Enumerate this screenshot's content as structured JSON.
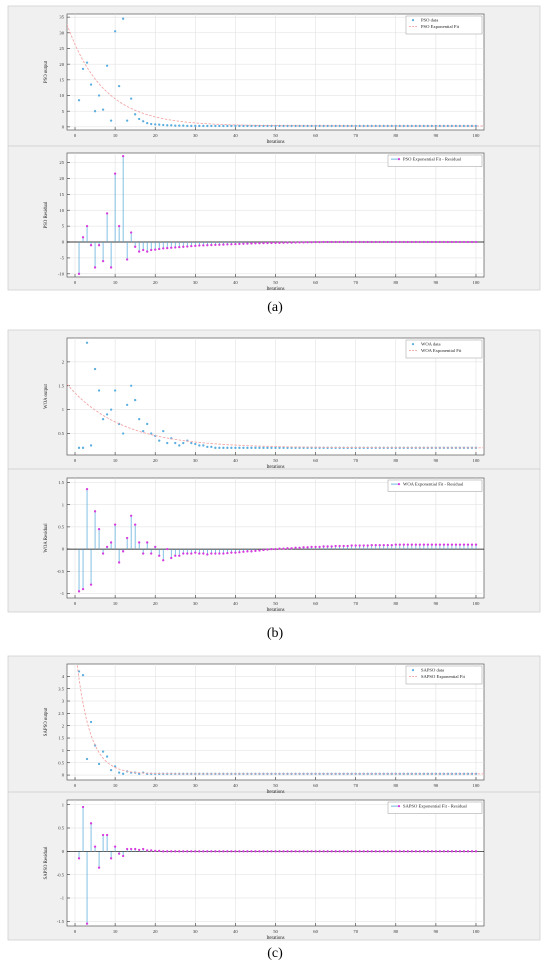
{
  "figure": {
    "captions": [
      "(a)",
      "(b)",
      "(c)"
    ],
    "colors": {
      "panel_bg": "#f0f0f0",
      "plot_bg": "#ffffff",
      "data_marker": "#5aaee0",
      "fit_line": "#f4a6a6",
      "stem_line": "#4da6d9",
      "stem_marker": "#d63be0",
      "zero_line": "#000000",
      "grid": "#dddddd"
    },
    "fit_line_style": "dashed"
  },
  "chart_data": [
    {
      "type": "scatter",
      "group": "(a)",
      "ylabel": "PSO output",
      "xlabel": "Iterations",
      "xlim": [
        -2,
        102
      ],
      "ylim": [
        -1,
        36
      ],
      "xticks": [
        0,
        10,
        20,
        30,
        40,
        50,
        60,
        70,
        80,
        90,
        100
      ],
      "xtick_labels": [
        "0",
        "10",
        "20",
        "30",
        "40",
        "50",
        "60",
        "70",
        "80",
        "90",
        "100"
      ],
      "yticks": [
        0,
        5,
        10,
        15,
        20,
        25,
        30,
        35
      ],
      "ytick_labels": [
        "0",
        "5",
        "10",
        "15",
        "20",
        "25",
        "30",
        "35"
      ],
      "legend": [
        "PSO data",
        "PSO Exponential Fit"
      ],
      "legend_position": "top-right",
      "series": [
        {
          "name": "PSO data",
          "kind": "points",
          "y": [
            8.5,
            18.5,
            20.5,
            13.5,
            5,
            10,
            5.5,
            19.5,
            2,
            30.5,
            13,
            34.5,
            2,
            9,
            4,
            2.5,
            1.8,
            1.2,
            0.9,
            0.8,
            0.7,
            0.6,
            0.5,
            0.5,
            0.4,
            0.4,
            0.4,
            0.3,
            0.3,
            0.3,
            0.3,
            0.3,
            0.3,
            0.3,
            0.3,
            0.3,
            0.3,
            0.3,
            0.3,
            0.3,
            0.3,
            0.3,
            0.3,
            0.3,
            0.3,
            0.3,
            0.3,
            0.3,
            0.3,
            0.3,
            0.3,
            0.3,
            0.3,
            0.3,
            0.3,
            0.3,
            0.3,
            0.3,
            0.3,
            0.3,
            0.3,
            0.3,
            0.3,
            0.3,
            0.3,
            0.3,
            0.3,
            0.3,
            0.3,
            0.3,
            0.3,
            0.3,
            0.3,
            0.3,
            0.3,
            0.3,
            0.3,
            0.3,
            0.3,
            0.3,
            0.3,
            0.3,
            0.3,
            0.3,
            0.3,
            0.3,
            0.3,
            0.3,
            0.3,
            0.3,
            0.3,
            0.3,
            0.3,
            0.3,
            0.3,
            0.3,
            0.3,
            0.3,
            0.3,
            0.3
          ]
        },
        {
          "name": "PSO Exponential Fit",
          "kind": "exp",
          "a": 26,
          "b": 0.11,
          "c": 0.3,
          "x_start": -2,
          "x_end": 102
        }
      ]
    },
    {
      "type": "stem",
      "group": "(a)",
      "ylabel": "PSO Residual",
      "xlabel": "Iterations",
      "xlim": [
        -2,
        102
      ],
      "ylim": [
        -11,
        28
      ],
      "xticks": [
        0,
        10,
        20,
        30,
        40,
        50,
        60,
        70,
        80,
        90,
        100
      ],
      "xtick_labels": [
        "0",
        "10",
        "20",
        "30",
        "40",
        "50",
        "60",
        "70",
        "80",
        "90",
        "100"
      ],
      "yticks": [
        -10,
        -5,
        0,
        5,
        10,
        15,
        20,
        25
      ],
      "ytick_labels": [
        "-10",
        "-5",
        "0",
        "5",
        "10",
        "15",
        "20",
        "25"
      ],
      "legend": [
        "PSO Exponential Fit - Residual"
      ],
      "legend_position": "top-right",
      "series": [
        {
          "name": "PSO Exponential Fit - Residual",
          "kind": "stem",
          "y": [
            -10,
            1.5,
            5,
            -1,
            -8,
            -1,
            -6,
            9,
            -8,
            21.5,
            5,
            27,
            -5.5,
            3,
            -1.5,
            -3,
            -2.5,
            -3,
            -2.5,
            -2.4,
            -2.2,
            -2,
            -1.9,
            -1.8,
            -1.7,
            -1.6,
            -1.5,
            -1.4,
            -1.3,
            -1.2,
            -1.1,
            -1.05,
            -1,
            -0.95,
            -0.9,
            -0.85,
            -0.8,
            -0.75,
            -0.7,
            -0.65,
            -0.6,
            -0.55,
            -0.5,
            -0.45,
            -0.4,
            -0.38,
            -0.35,
            -0.32,
            -0.3,
            -0.28,
            -0.25,
            -0.22,
            -0.2,
            -0.18,
            -0.15,
            -0.12,
            -0.1,
            -0.08,
            -0.06,
            -0.04,
            -0.02,
            0,
            0,
            0,
            0,
            0,
            0,
            0,
            0,
            0,
            0,
            0,
            0,
            0,
            0,
            0,
            0,
            0,
            0,
            0,
            0,
            0,
            0,
            0,
            0,
            0,
            0,
            0,
            0,
            0,
            0,
            0,
            0,
            0,
            0,
            0,
            0,
            0,
            0,
            0
          ]
        }
      ]
    },
    {
      "type": "scatter",
      "group": "(b)",
      "ylabel": "WOA output",
      "xlabel": "Iterations",
      "xlim": [
        -2,
        102
      ],
      "ylim": [
        0.05,
        2.5
      ],
      "xticks": [
        0,
        10,
        20,
        30,
        40,
        50,
        60,
        70,
        80,
        90,
        100
      ],
      "xtick_labels": [
        "0",
        "10",
        "20",
        "30",
        "40",
        "50",
        "60",
        "70",
        "80",
        "90",
        "100"
      ],
      "yticks": [
        0.5,
        1,
        1.5,
        2
      ],
      "ytick_labels": [
        "0.5",
        "1",
        "1.5",
        "2"
      ],
      "legend": [
        "WOA data",
        "WOA Exponential Fit"
      ],
      "legend_position": "top-right",
      "series": [
        {
          "name": "WOA data",
          "kind": "points",
          "y": [
            0.2,
            0.2,
            2.4,
            0.25,
            1.85,
            1.4,
            0.8,
            0.9,
            1,
            1.4,
            0.7,
            0.5,
            1.1,
            1.5,
            1.2,
            0.8,
            0.55,
            0.7,
            0.5,
            0.45,
            0.35,
            0.55,
            0.3,
            0.4,
            0.3,
            0.25,
            0.3,
            0.35,
            0.3,
            0.28,
            0.25,
            0.25,
            0.22,
            0.22,
            0.2,
            0.2,
            0.2,
            0.2,
            0.2,
            0.2,
            0.2,
            0.2,
            0.2,
            0.2,
            0.2,
            0.2,
            0.2,
            0.2,
            0.2,
            0.2,
            0.2,
            0.2,
            0.2,
            0.2,
            0.2,
            0.2,
            0.2,
            0.2,
            0.2,
            0.2,
            0.2,
            0.2,
            0.2,
            0.2,
            0.2,
            0.2,
            0.2,
            0.2,
            0.2,
            0.2,
            0.2,
            0.2,
            0.2,
            0.2,
            0.2,
            0.2,
            0.2,
            0.2,
            0.2,
            0.2,
            0.2,
            0.2,
            0.2,
            0.2,
            0.2,
            0.2,
            0.2,
            0.2,
            0.2,
            0.2,
            0.2,
            0.2,
            0.2,
            0.2,
            0.2,
            0.2,
            0.2,
            0.2,
            0.2,
            0.2
          ]
        },
        {
          "name": "WOA Exponential Fit",
          "kind": "exp",
          "a": 1.15,
          "b": 0.075,
          "c": 0.2,
          "x_start": -2,
          "x_end": 102
        }
      ]
    },
    {
      "type": "stem",
      "group": "(b)",
      "ylabel": "WOA Residual",
      "xlabel": "Iterations",
      "xlim": [
        -2,
        102
      ],
      "ylim": [
        -1.1,
        1.6
      ],
      "xticks": [
        0,
        10,
        20,
        30,
        40,
        50,
        60,
        70,
        80,
        90,
        100
      ],
      "xtick_labels": [
        "0",
        "10",
        "20",
        "30",
        "40",
        "50",
        "60",
        "70",
        "80",
        "90",
        "100"
      ],
      "yticks": [
        -1,
        -0.5,
        0,
        0.5,
        1,
        1.5
      ],
      "ytick_labels": [
        "-1",
        "-0.5",
        "0",
        "0.5",
        "1",
        "1.5"
      ],
      "legend": [
        "WOA Exponential Fit - Residual"
      ],
      "legend_position": "top-right",
      "series": [
        {
          "name": "WOA Exponential Fit - Residual",
          "kind": "stem",
          "y": [
            -0.95,
            -0.9,
            1.35,
            -0.8,
            0.85,
            0.45,
            -0.1,
            0.05,
            0.15,
            0.55,
            -0.3,
            -0.05,
            0.25,
            0.75,
            0.55,
            0.15,
            -0.1,
            0.15,
            -0.1,
            0.05,
            -0.15,
            -0.25,
            0,
            -0.2,
            -0.15,
            -0.15,
            -0.1,
            -0.1,
            -0.1,
            -0.08,
            -0.1,
            -0.1,
            -0.12,
            -0.1,
            -0.1,
            -0.1,
            -0.1,
            -0.09,
            -0.08,
            -0.08,
            -0.07,
            -0.06,
            -0.05,
            -0.05,
            -0.04,
            -0.03,
            -0.02,
            -0.01,
            0,
            0,
            0.01,
            0.01,
            0.02,
            0.02,
            0.03,
            0.03,
            0.04,
            0.04,
            0.05,
            0.05,
            0.05,
            0.06,
            0.06,
            0.06,
            0.07,
            0.07,
            0.07,
            0.07,
            0.08,
            0.08,
            0.08,
            0.08,
            0.08,
            0.09,
            0.09,
            0.09,
            0.09,
            0.09,
            0.09,
            0.1,
            0.1,
            0.1,
            0.1,
            0.1,
            0.1,
            0.1,
            0.1,
            0.1,
            0.1,
            0.1,
            0.1,
            0.1,
            0.1,
            0.1,
            0.1,
            0.1,
            0.1,
            0.1,
            0.1,
            0.1
          ]
        }
      ]
    },
    {
      "type": "scatter",
      "group": "(c)",
      "ylabel": "SAPSO output",
      "xlabel": "Iterations",
      "xlim": [
        -2,
        102
      ],
      "ylim": [
        -0.2,
        4.5
      ],
      "xticks": [
        0,
        10,
        20,
        30,
        40,
        50,
        60,
        70,
        80,
        90,
        100
      ],
      "xtick_labels": [
        "0",
        "10",
        "20",
        "30",
        "40",
        "50",
        "60",
        "70",
        "80",
        "90",
        "100"
      ],
      "yticks": [
        0,
        0.5,
        1,
        1.5,
        2,
        2.5,
        3,
        3.5,
        4
      ],
      "ytick_labels": [
        "0",
        "0.5",
        "1",
        "1.5",
        "2",
        "2.5",
        "3",
        "3.5",
        "4"
      ],
      "legend": [
        "SAPSO data",
        "SAPSO Exponential Fit"
      ],
      "legend_position": "top-right",
      "series": [
        {
          "name": "SAPSO data",
          "kind": "points",
          "y": [
            4.2,
            4.05,
            0.65,
            2.15,
            1.2,
            0.45,
            0.95,
            0.75,
            0.2,
            0.35,
            0.1,
            0.05,
            0.15,
            0.1,
            0.1,
            0.05,
            0.1,
            0.05,
            0.05,
            0.05,
            0.05,
            0.05,
            0.05,
            0.05,
            0.05,
            0.05,
            0.05,
            0.05,
            0.05,
            0.05,
            0.05,
            0.05,
            0.05,
            0.05,
            0.05,
            0.05,
            0.05,
            0.05,
            0.05,
            0.05,
            0.05,
            0.05,
            0.05,
            0.05,
            0.05,
            0.05,
            0.05,
            0.05,
            0.05,
            0.05,
            0.05,
            0.05,
            0.05,
            0.05,
            0.05,
            0.05,
            0.05,
            0.05,
            0.05,
            0.05,
            0.05,
            0.05,
            0.05,
            0.05,
            0.05,
            0.05,
            0.05,
            0.05,
            0.05,
            0.05,
            0.05,
            0.05,
            0.05,
            0.05,
            0.05,
            0.05,
            0.05,
            0.05,
            0.05,
            0.05,
            0.05,
            0.05,
            0.05,
            0.05,
            0.05,
            0.05,
            0.05,
            0.05,
            0.05,
            0.05,
            0.05,
            0.05,
            0.05,
            0.05,
            0.05,
            0.05,
            0.05,
            0.05,
            0.05,
            0.05
          ]
        },
        {
          "name": "SAPSO Exponential Fit",
          "kind": "exp",
          "a": 5.2,
          "b": 0.3,
          "c": 0.05,
          "x_start": 0,
          "x_end": 102
        }
      ]
    },
    {
      "type": "stem",
      "group": "(c)",
      "ylabel": "SAPSO Residual",
      "xlabel": "Iterations",
      "xlim": [
        -2,
        102
      ],
      "ylim": [
        -1.6,
        1.1
      ],
      "xticks": [
        0,
        10,
        20,
        30,
        40,
        50,
        60,
        70,
        80,
        90,
        100
      ],
      "xtick_labels": [
        "0",
        "10",
        "20",
        "30",
        "40",
        "50",
        "60",
        "70",
        "80",
        "90",
        "100"
      ],
      "yticks": [
        -1.5,
        -1,
        -0.5,
        0,
        0.5,
        1
      ],
      "ytick_labels": [
        "-1.5",
        "-1",
        "-0.5",
        "0",
        "0.5",
        "1"
      ],
      "legend": [
        "SAPSO Exponential Fit - Residual"
      ],
      "legend_position": "top-right",
      "series": [
        {
          "name": "SAPSO Exponential Fit - Residual",
          "kind": "stem",
          "y": [
            -0.15,
            0.95,
            -1.55,
            0.6,
            0.1,
            -0.35,
            0.35,
            0.35,
            -0.15,
            0.1,
            -0.05,
            -0.1,
            0.05,
            0.05,
            0.05,
            0.03,
            0.05,
            0.02,
            0.02,
            0.01,
            0.01,
            0,
            0,
            0,
            0,
            0,
            0,
            0,
            0,
            0,
            0,
            0,
            0,
            0,
            0,
            0,
            0,
            0,
            0,
            0,
            0,
            0,
            0,
            0,
            0,
            0,
            0,
            0,
            0,
            0,
            0,
            0,
            0,
            0,
            0,
            0,
            0,
            0,
            0,
            0,
            0,
            0,
            0,
            0,
            0,
            0,
            0,
            0,
            0,
            0,
            0,
            0,
            0,
            0,
            0,
            0,
            0,
            0,
            0,
            0,
            0,
            0,
            0,
            0,
            0,
            0,
            0,
            0,
            0,
            0,
            0,
            0,
            0,
            0,
            0,
            0,
            0,
            0,
            0,
            0
          ]
        }
      ]
    }
  ]
}
